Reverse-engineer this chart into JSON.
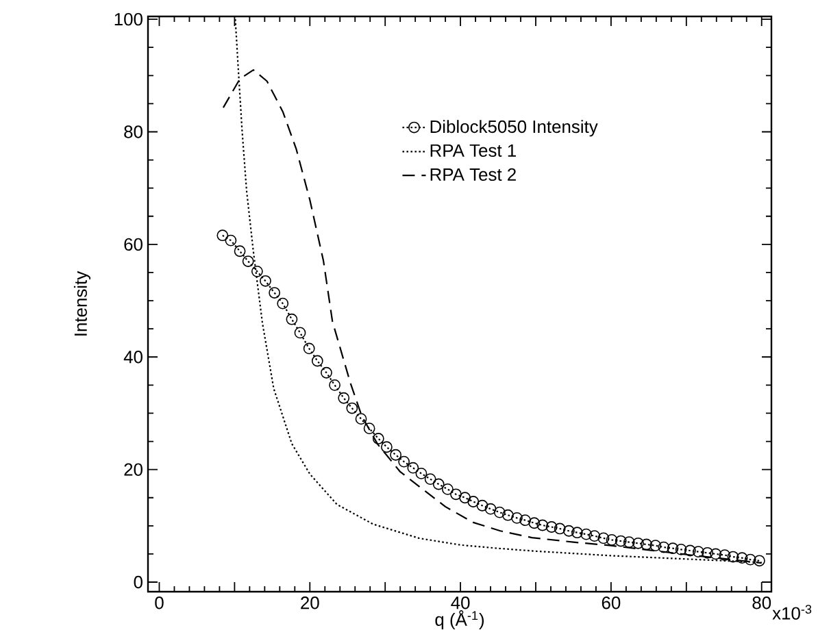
{
  "chart_data": {
    "type": "line",
    "xlabel": "q (Å$^{-1}$)",
    "ylabel": "Intensity",
    "xlim": [
      -1.5,
      81.3
    ],
    "ylim": [
      -1.7,
      100.5
    ],
    "xticks": [
      0,
      {
        "value": 10,
        "label": null
      },
      20,
      {
        "value": 30,
        "label": null
      },
      40,
      {
        "value": 50,
        "label": null
      },
      60,
      {
        "value": 70,
        "label": null
      },
      80
    ],
    "yticks": [
      0,
      20,
      40,
      60,
      80,
      100
    ],
    "annotations": [
      "x10$^{-3}$"
    ],
    "grid": false,
    "legend": "right",
    "series": [
      {
        "name": "Diblock5050 Intensity",
        "color": "#000000",
        "marker": "circle",
        "line_style": "dotted",
        "x": [
          8.4,
          9.5,
          10.7,
          11.8,
          13.0,
          14.1,
          15.3,
          16.4,
          17.6,
          18.7,
          19.9,
          21.0,
          22.2,
          23.3,
          24.5,
          25.6,
          26.8,
          27.9,
          29.1,
          30.2,
          31.4,
          32.5,
          33.7,
          34.8,
          36.0,
          37.1,
          38.3,
          39.4,
          40.6,
          41.7,
          42.9,
          44.0,
          45.2,
          46.3,
          47.5,
          48.6,
          49.8,
          50.9,
          52.1,
          53.2,
          54.4,
          55.5,
          56.7,
          57.8,
          59.0,
          60.1,
          61.3,
          62.4,
          63.6,
          64.7,
          65.9,
          67.0,
          68.2,
          69.3,
          70.5,
          71.6,
          72.8,
          73.9,
          75.1,
          76.2,
          77.4,
          78.5,
          79.7
        ],
        "values": [
          61.6,
          60.7,
          58.8,
          57.0,
          55.2,
          53.5,
          51.4,
          49.5,
          46.7,
          44.3,
          41.5,
          39.3,
          37.2,
          35.0,
          32.7,
          30.9,
          29.0,
          27.3,
          25.5,
          24.0,
          22.6,
          21.4,
          20.3,
          19.3,
          18.3,
          17.4,
          16.5,
          15.6,
          15.0,
          14.3,
          13.6,
          13.0,
          12.4,
          11.9,
          11.4,
          11.0,
          10.5,
          10.1,
          9.8,
          9.5,
          9.1,
          8.8,
          8.5,
          8.2,
          7.8,
          7.5,
          7.3,
          7.1,
          6.9,
          6.7,
          6.5,
          6.2,
          6.0,
          5.8,
          5.6,
          5.4,
          5.2,
          5.0,
          4.8,
          4.5,
          4.3,
          4.0,
          3.8
        ]
      },
      {
        "name": "RPA Test 1",
        "color": "#000000",
        "marker": "none",
        "line_style": "dotted",
        "x": [
          10.1,
          10.5,
          11.0,
          11.6,
          12.5,
          13.7,
          15.2,
          17.6,
          20.0,
          23.6,
          28.4,
          34.5,
          40.0,
          45.0,
          50.0,
          60.0,
          70.0,
          80.0
        ],
        "values": [
          100.0,
          91.0,
          80.2,
          69.5,
          58.7,
          46.0,
          34.4,
          24.6,
          19.2,
          13.8,
          10.3,
          7.8,
          6.6,
          6.0,
          5.5,
          4.7,
          4.1,
          3.5
        ]
      },
      {
        "name": "RPA Test 2",
        "color": "#000000",
        "marker": "none",
        "line_style": "dashed",
        "x": [
          8.5,
          10.7,
          12.5,
          14.3,
          16.4,
          18.2,
          20.0,
          21.8,
          23.0,
          25.4,
          26.9,
          29.0,
          32.0,
          35.0,
          38.0,
          41.7,
          45.3,
          49.5,
          55.0,
          60.0,
          70.0,
          80.0
        ],
        "values": [
          84.3,
          89.4,
          91.0,
          89.0,
          83.6,
          76.9,
          67.9,
          57.1,
          46.3,
          35.3,
          29.5,
          24.5,
          19.6,
          16.5,
          13.4,
          10.6,
          9.1,
          7.9,
          7.1,
          6.5,
          4.9,
          3.4
        ]
      }
    ]
  }
}
